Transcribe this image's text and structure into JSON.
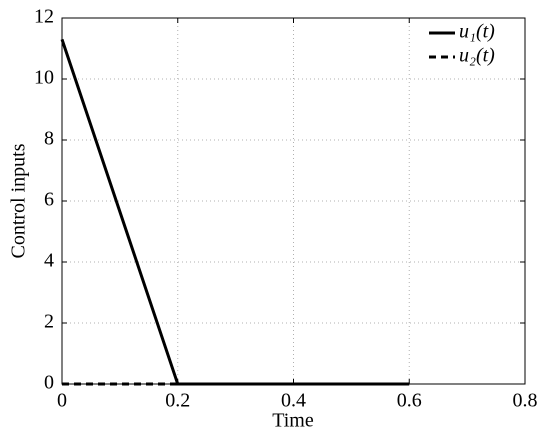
{
  "chart_data": {
    "type": "line",
    "xlabel": "Time",
    "ylabel": "Control inputs",
    "x": [
      0,
      0.2,
      0.6
    ],
    "series": [
      {
        "name": "u₁(t)",
        "color": "#000000",
        "linestyle": "solid",
        "values": [
          11.3,
          0,
          0
        ]
      },
      {
        "name": "u₂(t)",
        "color": "#000000",
        "linestyle": "dashed",
        "values": [
          0,
          0,
          0
        ]
      }
    ],
    "xlim": [
      0,
      0.8
    ],
    "xticks": [
      0,
      0.2,
      0.4,
      0.6,
      0.8
    ],
    "ylim": [
      0,
      12
    ],
    "yticks": [
      0,
      2,
      4,
      6,
      8,
      10,
      12
    ],
    "grid": true,
    "legend": "upper right"
  }
}
